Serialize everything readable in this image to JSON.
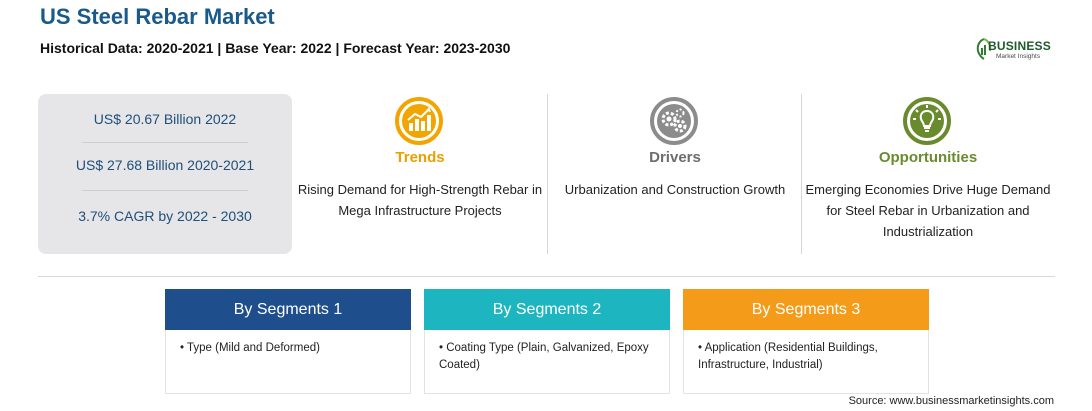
{
  "header": {
    "title": "US Steel Rebar Market",
    "subtitle": "Historical Data: 2020-2021 | Base Year: 2022 | Forecast Year: 2023-2030"
  },
  "logo": {
    "name": "BUSINESS",
    "tagline": "Market Insights",
    "color": "#1e5a2a"
  },
  "stats": [
    "US$ 20.67 Billion 2022",
    "US$ 27.68 Billion 2020-2021",
    "3.7% CAGR by 2022 - 2030"
  ],
  "columns": {
    "trends": {
      "label": "Trends",
      "description": "Rising Demand for High-Strength Rebar in Mega Infrastructure Projects",
      "color": "#e8a100",
      "icon": "growth-chart-icon"
    },
    "drivers": {
      "label": "Drivers",
      "description": "Urbanization and Construction Growth",
      "color": "#6d6d6d",
      "icon": "gears-icon"
    },
    "opportunities": {
      "label": "Opportunities",
      "description": "Emerging Economies Drive Huge Demand for Steel Rebar in Urbanization and Industrialization",
      "color": "#6a8b2d",
      "icon": "lightbulb-icon"
    }
  },
  "segments": [
    {
      "title": "By Segments 1",
      "item": "• Type (Mild and Deformed)",
      "color": "#1f4e8c"
    },
    {
      "title": "By Segments 2",
      "item": "• Coating Type (Plain, Galvanized, Epoxy Coated)",
      "color": "#1db5bf"
    },
    {
      "title": "By Segments 3",
      "item": "• Application (Residential Buildings, Infrastructure, Industrial)",
      "color": "#f49b1a"
    }
  ],
  "source": "Source: www.businessmarketinsights.com"
}
